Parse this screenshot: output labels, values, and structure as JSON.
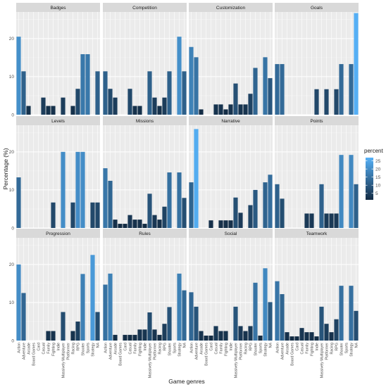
{
  "chart_data": {
    "type": "bar",
    "facet": "wrap",
    "ncol": 4,
    "ylabel": "Percentage (%)",
    "xlabel": "Game genres",
    "ylim": [
      0,
      27
    ],
    "yticks": [
      0,
      10,
      20
    ],
    "grid": true,
    "categories": [
      "Action",
      "Adventure",
      "Arcade",
      "Board Games",
      "Card",
      "Casual",
      "Family",
      "Fighting",
      "Indie",
      "Massively Multiplayer",
      "Platformer",
      "Racing",
      "RPG",
      "Shooter",
      "Sports",
      "Strategy",
      "NA"
    ],
    "legend": {
      "title": "percent",
      "position": "right",
      "breaks": [
        5,
        10,
        15,
        20,
        25
      ],
      "range": [
        1,
        27
      ],
      "color_low": "#132B43",
      "color_high": "#56B1F7"
    },
    "panels": [
      {
        "name": "Badges",
        "values": [
          20.5,
          11.4,
          2.3,
          0,
          0,
          4.5,
          2.3,
          2.3,
          0,
          4.5,
          0,
          2.3,
          6.8,
          15.9,
          15.9,
          0,
          11.4
        ]
      },
      {
        "name": "Competition",
        "values": [
          11.4,
          6.8,
          4.5,
          0,
          0,
          6.8,
          2.3,
          2.3,
          0,
          11.4,
          4.5,
          2.3,
          4.5,
          11.4,
          0,
          20.5,
          11.4
        ]
      },
      {
        "name": "Customization",
        "values": [
          17.8,
          15.1,
          1.4,
          0,
          0,
          2.7,
          2.7,
          1.4,
          2.7,
          8.2,
          2.7,
          2.7,
          5.5,
          12.3,
          0,
          15.1,
          9.6
        ]
      },
      {
        "name": "Goals",
        "values": [
          13.3,
          13.3,
          0,
          0,
          0,
          0,
          0,
          0,
          6.7,
          0,
          6.7,
          0,
          6.7,
          13.3,
          0,
          13.3,
          26.7
        ]
      },
      {
        "name": "Levels",
        "values": [
          13.3,
          0,
          0,
          0,
          0,
          0,
          0,
          6.7,
          0,
          20.0,
          0,
          6.7,
          20.0,
          20.0,
          0,
          6.7,
          6.7
        ]
      },
      {
        "name": "Missions",
        "values": [
          15.7,
          12.4,
          2.2,
          1.1,
          1.1,
          3.4,
          2.2,
          2.2,
          1.1,
          9.0,
          3.4,
          2.2,
          5.6,
          14.6,
          0,
          14.6,
          7.9
        ]
      },
      {
        "name": "Narrative",
        "values": [
          12.0,
          26.0,
          0,
          0,
          2.0,
          0,
          2.0,
          2.0,
          2.0,
          8.0,
          4.0,
          0,
          6.0,
          10.0,
          0,
          12.0,
          14.0
        ]
      },
      {
        "name": "Points",
        "values": [
          11.5,
          7.7,
          0,
          0,
          0,
          0,
          3.8,
          3.8,
          0,
          11.5,
          3.8,
          3.8,
          3.8,
          19.2,
          0,
          19.2,
          11.5
        ]
      },
      {
        "name": "Progression",
        "values": [
          20.0,
          12.5,
          0,
          0,
          0,
          0,
          2.5,
          2.5,
          0,
          7.5,
          0,
          2.5,
          5.0,
          17.5,
          0,
          22.5,
          7.5
        ]
      },
      {
        "name": "Rules",
        "values": [
          14.7,
          17.6,
          1.5,
          0,
          1.5,
          1.5,
          1.5,
          2.9,
          2.9,
          7.4,
          2.9,
          1.5,
          4.4,
          8.8,
          0,
          17.6,
          13.2
        ]
      },
      {
        "name": "Social",
        "values": [
          12.7,
          8.9,
          2.5,
          1.3,
          1.3,
          3.8,
          2.5,
          2.5,
          0,
          8.9,
          3.8,
          2.5,
          3.8,
          15.2,
          1.3,
          19.0,
          10.1
        ]
      },
      {
        "name": "Teamwork",
        "values": [
          15.6,
          12.2,
          2.2,
          1.1,
          1.1,
          3.3,
          2.2,
          2.2,
          1.1,
          8.9,
          4.4,
          2.2,
          5.6,
          14.4,
          0,
          14.4,
          7.8
        ]
      }
    ]
  }
}
